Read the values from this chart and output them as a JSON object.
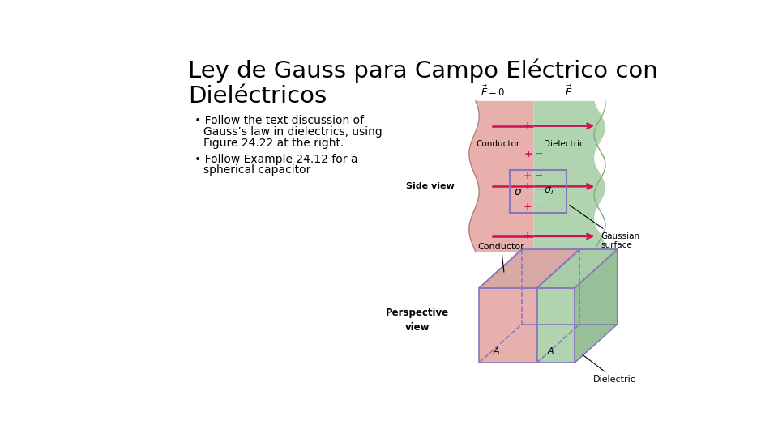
{
  "title_line1": "Ley de Gauss para Campo Eléctrico con",
  "title_line2": "Dieléctricos",
  "bullet1_line1": "Follow the text discussion of",
  "bullet1_line2": "Gauss’s law in dielectrics, using",
  "bullet1_line3": "Figure 24.22 at the right.",
  "bullet2_line1": "Follow Example 24.12 for a",
  "bullet2_line2": "spherical capacitor",
  "bg_color": "#ffffff",
  "conductor_color": "#e8b0ac",
  "dielectric_color": "#b0d4b0",
  "gaussian_box_color": "#8878bb",
  "arrow_color": "#cc1155",
  "plus_color": "#cc1155",
  "minus_color": "#3377bb",
  "text_color": "#000000"
}
